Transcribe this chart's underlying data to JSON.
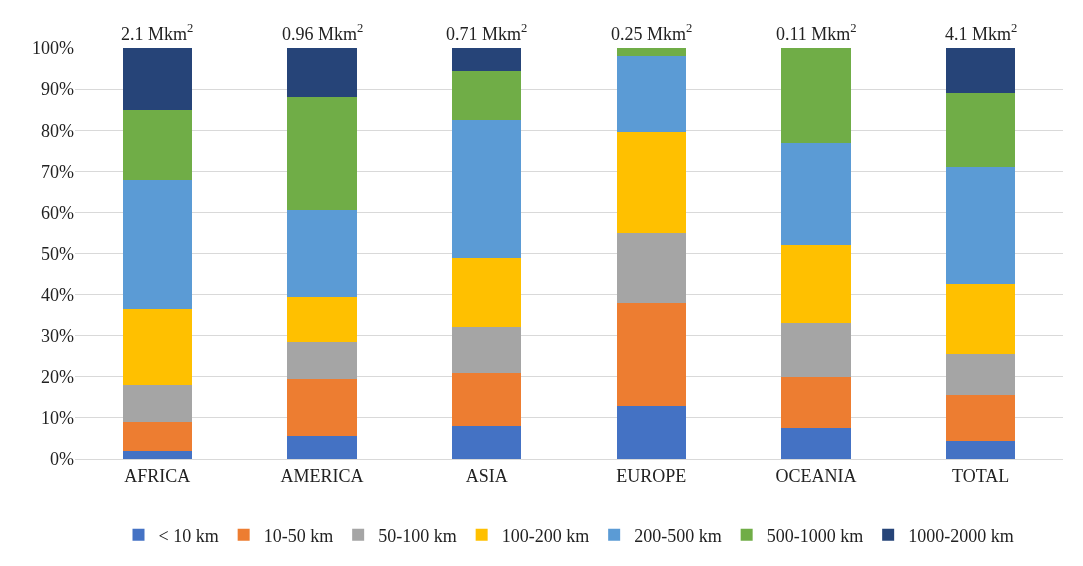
{
  "chart_data": {
    "type": "bar",
    "stacked": true,
    "categories": [
      "AFRICA",
      "AMERICA",
      "ASIA",
      "EUROPE",
      "OCEANIA",
      "TOTAL"
    ],
    "series": [
      {
        "name": "< 10 km",
        "color": "#4472c4",
        "values": [
          2,
          5.5,
          8,
          13,
          7.5,
          4.5
        ]
      },
      {
        "name": "10-50 km",
        "color": "#ed7d31",
        "values": [
          7,
          14,
          13,
          25,
          12.5,
          11
        ]
      },
      {
        "name": "50-100 km",
        "color": "#a5a5a5",
        "values": [
          9,
          9,
          11,
          17,
          13,
          10
        ]
      },
      {
        "name": "100-200 km",
        "color": "#ffc000",
        "values": [
          18.5,
          11,
          17,
          24.5,
          19,
          17
        ]
      },
      {
        "name": "200-500 km",
        "color": "#5b9bd5",
        "values": [
          31.5,
          21,
          33.5,
          18.5,
          25,
          28.5
        ]
      },
      {
        "name": "500-1000 km",
        "color": "#70ad47",
        "values": [
          17,
          27.5,
          12,
          2,
          23,
          18
        ]
      },
      {
        "name": "1000-2000 km",
        "color": "#264478",
        "values": [
          15,
          12,
          5.5,
          0,
          0,
          11
        ]
      }
    ],
    "ylim": [
      0,
      100
    ],
    "yticks": [
      {
        "value": 0,
        "label": "0%"
      },
      {
        "value": 10,
        "label": "10%"
      },
      {
        "value": 20,
        "label": "20%"
      },
      {
        "value": 30,
        "label": "30%"
      },
      {
        "value": 40,
        "label": "40%"
      },
      {
        "value": 50,
        "label": "50%"
      },
      {
        "value": 60,
        "label": "60%"
      },
      {
        "value": 70,
        "label": "70%"
      },
      {
        "value": 80,
        "label": "80%"
      },
      {
        "value": 90,
        "label": "90%"
      },
      {
        "value": 100,
        "label": "100%"
      }
    ],
    "grid": "y",
    "legend": "bottom",
    "annotations": [
      {
        "text": "2.1 Mkm$^{2}$",
        "x": "AFRICA",
        "y": 100
      },
      {
        "text": "0.96 Mkm$^{2}$",
        "x": "AMERICA",
        "y": 100
      },
      {
        "text": "0.71 Mkm$^{2}$",
        "x": "ASIA",
        "y": 100
      },
      {
        "text": "0.25 Mkm$^{2}$",
        "x": "EUROPE",
        "y": 100
      },
      {
        "text": "0.11 Mkm$^{2}$",
        "x": "OCEANIA",
        "y": 100
      },
      {
        "text": "4.1 Mkm$^{2}$",
        "x": "TOTAL",
        "y": 100
      }
    ]
  }
}
